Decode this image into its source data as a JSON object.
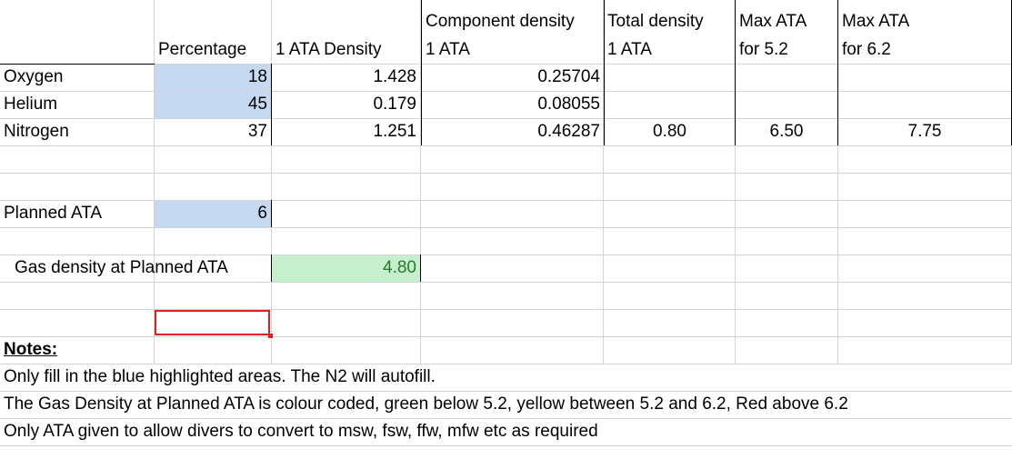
{
  "headers": {
    "percentage": "Percentage",
    "density_1ata": "1 ATA Density",
    "component_density_l1": "Component density",
    "component_density_l2": "1 ATA",
    "total_density_l1": "Total density",
    "total_density_l2": "1 ATA",
    "max_52_l1": "Max ATA",
    "max_52_l2": "for 5.2",
    "max_62_l1": "Max ATA",
    "max_62_l2": "for 6.2"
  },
  "gases": [
    {
      "name": "Oxygen",
      "percentage": "18",
      "density": "1.428",
      "component": "0.25704"
    },
    {
      "name": "Helium",
      "percentage": "45",
      "density": "0.179",
      "component": "0.08055"
    },
    {
      "name": "Nitrogen",
      "percentage": "37",
      "density": "1.251",
      "component": "0.46287"
    }
  ],
  "totals": {
    "total_density": "0.80",
    "max_52": "6.50",
    "max_62": "7.75"
  },
  "planned": {
    "label": "Planned ATA",
    "value": "6"
  },
  "result": {
    "label": "Gas density at Planned ATA",
    "value": "4.80"
  },
  "notes": {
    "title": "Notes:",
    "lines": [
      "Only fill in the blue highlighted areas. The N2 will autofill.",
      "The Gas Density at Planned ATA is colour coded, green below 5.2, yellow between 5.2 and 6.2, Red above 6.2",
      "Only ATA given to allow divers to convert to msw, fsw, ffw, mfw etc as required"
    ]
  },
  "colors": {
    "input_fill": "#c5d9f1",
    "result_fill": "#c6efce",
    "result_text": "#2a7a2a",
    "selection": "#e02020"
  }
}
